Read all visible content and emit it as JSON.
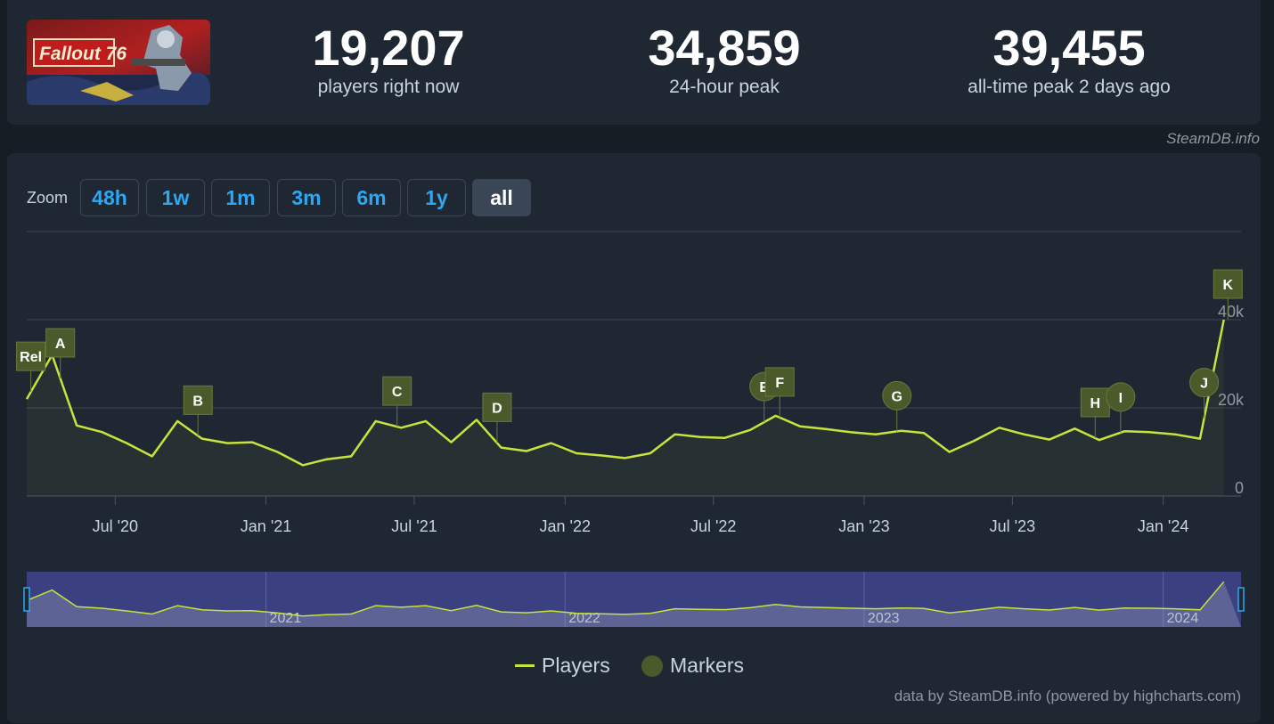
{
  "header": {
    "logo_text": "Fallout 76",
    "stats": [
      {
        "value": "19,207",
        "label": "players right now"
      },
      {
        "value": "34,859",
        "label": "24-hour peak"
      },
      {
        "value": "39,455",
        "label": "all-time peak 2 days ago"
      }
    ],
    "credit": "SteamDB.info"
  },
  "zoom": {
    "label": "Zoom",
    "buttons": [
      "48h",
      "1w",
      "1m",
      "3m",
      "6m",
      "1y",
      "all"
    ],
    "active": "all"
  },
  "chart_data": {
    "type": "line",
    "series": [
      {
        "name": "Players",
        "color": "#c8e43c",
        "points": [
          [
            "2020-03-15",
            22000
          ],
          [
            "2020-04-15",
            32000
          ],
          [
            "2020-05-15",
            16000
          ],
          [
            "2020-06-15",
            14500
          ],
          [
            "2020-07-15",
            12000
          ],
          [
            "2020-08-15",
            9000
          ],
          [
            "2020-09-15",
            17000
          ],
          [
            "2020-10-15",
            13000
          ],
          [
            "2020-11-15",
            12000
          ],
          [
            "2020-12-15",
            12200
          ],
          [
            "2021-01-15",
            10000
          ],
          [
            "2021-02-15",
            7000
          ],
          [
            "2021-03-15",
            8300
          ],
          [
            "2021-04-15",
            9000
          ],
          [
            "2021-05-15",
            17000
          ],
          [
            "2021-06-15",
            15500
          ],
          [
            "2021-07-15",
            17000
          ],
          [
            "2021-08-15",
            12200
          ],
          [
            "2021-09-15",
            17300
          ],
          [
            "2021-10-15",
            11000
          ],
          [
            "2021-11-15",
            10200
          ],
          [
            "2021-12-15",
            12000
          ],
          [
            "2022-01-15",
            9700
          ],
          [
            "2022-02-15",
            9200
          ],
          [
            "2022-03-15",
            8600
          ],
          [
            "2022-04-15",
            9700
          ],
          [
            "2022-05-15",
            14000
          ],
          [
            "2022-06-15",
            13400
          ],
          [
            "2022-07-15",
            13200
          ],
          [
            "2022-08-15",
            15000
          ],
          [
            "2022-09-15",
            18200
          ],
          [
            "2022-10-15",
            15800
          ],
          [
            "2022-11-15",
            15200
          ],
          [
            "2022-12-15",
            14500
          ],
          [
            "2023-01-15",
            14000
          ],
          [
            "2023-02-15",
            14800
          ],
          [
            "2023-03-15",
            14300
          ],
          [
            "2023-04-15",
            10000
          ],
          [
            "2023-05-15",
            12500
          ],
          [
            "2023-06-15",
            15500
          ],
          [
            "2023-07-15",
            14000
          ],
          [
            "2023-08-15",
            12800
          ],
          [
            "2023-09-15",
            15300
          ],
          [
            "2023-10-15",
            12700
          ],
          [
            "2023-11-15",
            14700
          ],
          [
            "2023-12-15",
            14500
          ],
          [
            "2024-01-15",
            14000
          ],
          [
            "2024-02-15",
            13000
          ],
          [
            "2024-03-15",
            40000
          ]
        ]
      },
      {
        "name": "Markers",
        "color": "#4a5a2a"
      }
    ],
    "markers": [
      {
        "label": "Rel",
        "date": "2020-03-20",
        "shape": "square"
      },
      {
        "label": "A",
        "date": "2020-04-25",
        "shape": "square"
      },
      {
        "label": "B",
        "date": "2020-10-10",
        "shape": "square"
      },
      {
        "label": "C",
        "date": "2021-06-10",
        "shape": "square"
      },
      {
        "label": "D",
        "date": "2021-10-10",
        "shape": "square"
      },
      {
        "label": "E",
        "date": "2022-09-01",
        "shape": "circle"
      },
      {
        "label": "F",
        "date": "2022-09-20",
        "shape": "square"
      },
      {
        "label": "G",
        "date": "2023-02-10",
        "shape": "circle"
      },
      {
        "label": "H",
        "date": "2023-10-10",
        "shape": "square"
      },
      {
        "label": "I",
        "date": "2023-11-10",
        "shape": "circle"
      },
      {
        "label": "J",
        "date": "2024-02-20",
        "shape": "circle"
      },
      {
        "label": "K",
        "date": "2024-03-20",
        "shape": "square"
      }
    ],
    "x_ticks": [
      {
        "date": "2020-07-01",
        "label": "Jul '20"
      },
      {
        "date": "2021-01-01",
        "label": "Jan '21"
      },
      {
        "date": "2021-07-01",
        "label": "Jul '21"
      },
      {
        "date": "2022-01-01",
        "label": "Jan '22"
      },
      {
        "date": "2022-07-01",
        "label": "Jul '22"
      },
      {
        "date": "2023-01-01",
        "label": "Jan '23"
      },
      {
        "date": "2023-07-01",
        "label": "Jul '23"
      },
      {
        "date": "2024-01-01",
        "label": "Jan '24"
      }
    ],
    "y_ticks": [
      {
        "value": 0,
        "label": "0"
      },
      {
        "value": 20000,
        "label": "20k"
      },
      {
        "value": 40000,
        "label": "40k"
      }
    ],
    "xlim": [
      "2020-03-15",
      "2024-04-05"
    ],
    "ylim": [
      0,
      60000
    ],
    "navigator": {
      "year_labels": [
        {
          "date": "2021-01-01",
          "label": "2021"
        },
        {
          "date": "2022-01-01",
          "label": "2022"
        },
        {
          "date": "2023-01-01",
          "label": "2023"
        },
        {
          "date": "2024-01-01",
          "label": "2024"
        }
      ]
    },
    "grid": true,
    "legend_position": "bottom-center"
  },
  "legend": {
    "players": "Players",
    "markers": "Markers"
  },
  "footer": {
    "credit": "data by SteamDB.info (powered by highcharts.com)"
  }
}
